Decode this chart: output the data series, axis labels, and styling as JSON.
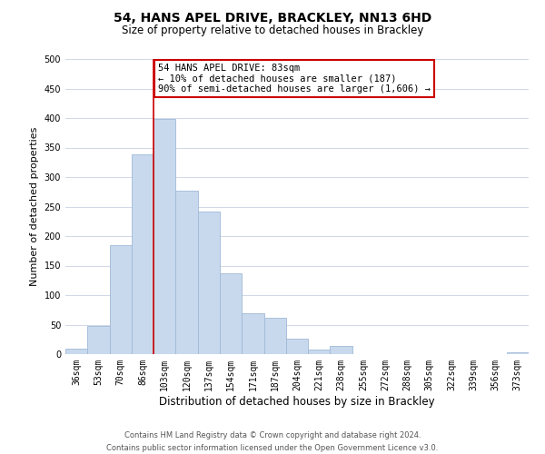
{
  "title": "54, HANS APEL DRIVE, BRACKLEY, NN13 6HD",
  "subtitle": "Size of property relative to detached houses in Brackley",
  "xlabel": "Distribution of detached houses by size in Brackley",
  "ylabel": "Number of detached properties",
  "bin_labels": [
    "36sqm",
    "53sqm",
    "70sqm",
    "86sqm",
    "103sqm",
    "120sqm",
    "137sqm",
    "154sqm",
    "171sqm",
    "187sqm",
    "204sqm",
    "221sqm",
    "238sqm",
    "255sqm",
    "272sqm",
    "288sqm",
    "305sqm",
    "322sqm",
    "339sqm",
    "356sqm",
    "373sqm"
  ],
  "bar_values": [
    10,
    47,
    185,
    338,
    398,
    277,
    242,
    137,
    70,
    62,
    26,
    8,
    14,
    0,
    0,
    0,
    0,
    0,
    0,
    0,
    3
  ],
  "bar_color": "#c8d9ed",
  "bar_edge_color": "#a0b8d8",
  "vline_x": 3.5,
  "vline_color": "#cc0000",
  "annotation_line1": "54 HANS APEL DRIVE: 83sqm",
  "annotation_line2": "← 10% of detached houses are smaller (187)",
  "annotation_line3": "90% of semi-detached houses are larger (1,606) →",
  "ylim": [
    0,
    500
  ],
  "yticks": [
    0,
    50,
    100,
    150,
    200,
    250,
    300,
    350,
    400,
    450,
    500
  ],
  "footer_line1": "Contains HM Land Registry data © Crown copyright and database right 2024.",
  "footer_line2": "Contains public sector information licensed under the Open Government Licence v3.0.",
  "background_color": "#ffffff",
  "grid_color": "#d0d8e8",
  "title_fontsize": 10,
  "subtitle_fontsize": 8.5,
  "ylabel_fontsize": 8,
  "xlabel_fontsize": 8.5,
  "tick_fontsize": 7,
  "annotation_fontsize": 7.5,
  "footer_fontsize": 6
}
